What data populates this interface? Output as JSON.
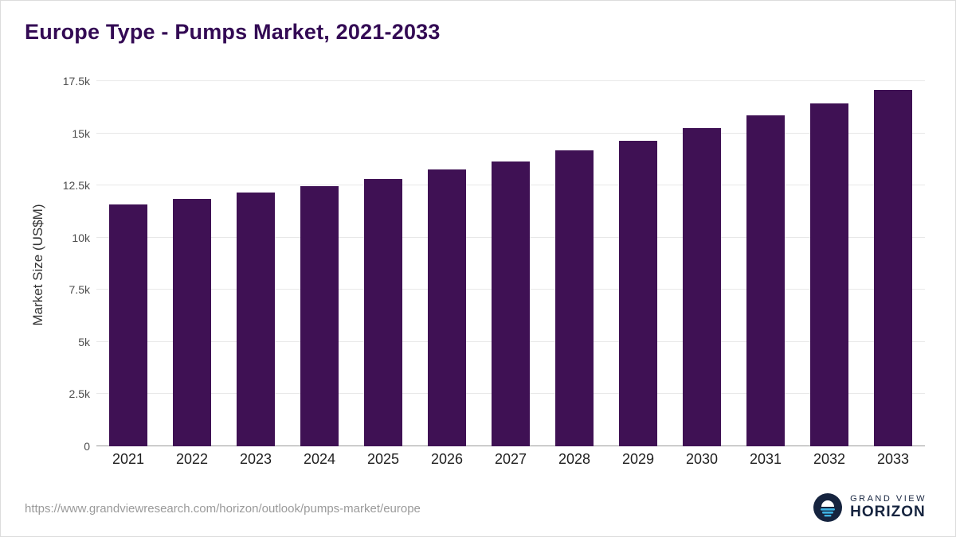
{
  "title": "Europe Type - Pumps Market, 2021-2033",
  "chart_data": {
    "type": "bar",
    "title": "Europe Type - Pumps Market, 2021-2033",
    "categories": [
      "2021",
      "2022",
      "2023",
      "2024",
      "2025",
      "2026",
      "2027",
      "2028",
      "2029",
      "2030",
      "2031",
      "2032",
      "2033"
    ],
    "values": [
      11600,
      11850,
      12150,
      12450,
      12800,
      13250,
      13650,
      14200,
      14650,
      15250,
      15850,
      16450,
      17100
    ],
    "xlabel": "",
    "ylabel": "Market Size (US$M)",
    "ylim": [
      0,
      17500
    ],
    "yticks": [
      {
        "value": 0,
        "label": "0"
      },
      {
        "value": 2500,
        "label": "2.5k"
      },
      {
        "value": 5000,
        "label": "5k"
      },
      {
        "value": 7500,
        "label": "7.5k"
      },
      {
        "value": 10000,
        "label": "10k"
      },
      {
        "value": 12500,
        "label": "12.5k"
      },
      {
        "value": 15000,
        "label": "15k"
      },
      {
        "value": 17500,
        "label": "17.5k"
      }
    ],
    "bar_color": "#3f1154",
    "grid": true,
    "legend": false
  },
  "footer": {
    "source_url": "https://www.grandviewresearch.com/horizon/outlook/pumps-market/europe",
    "logo": {
      "line1": "GRAND VIEW",
      "line2": "HORIZON",
      "icon": "horizon-sunrise-circle-icon",
      "navy": "#16243f",
      "cyan": "#3fb3e4"
    }
  }
}
